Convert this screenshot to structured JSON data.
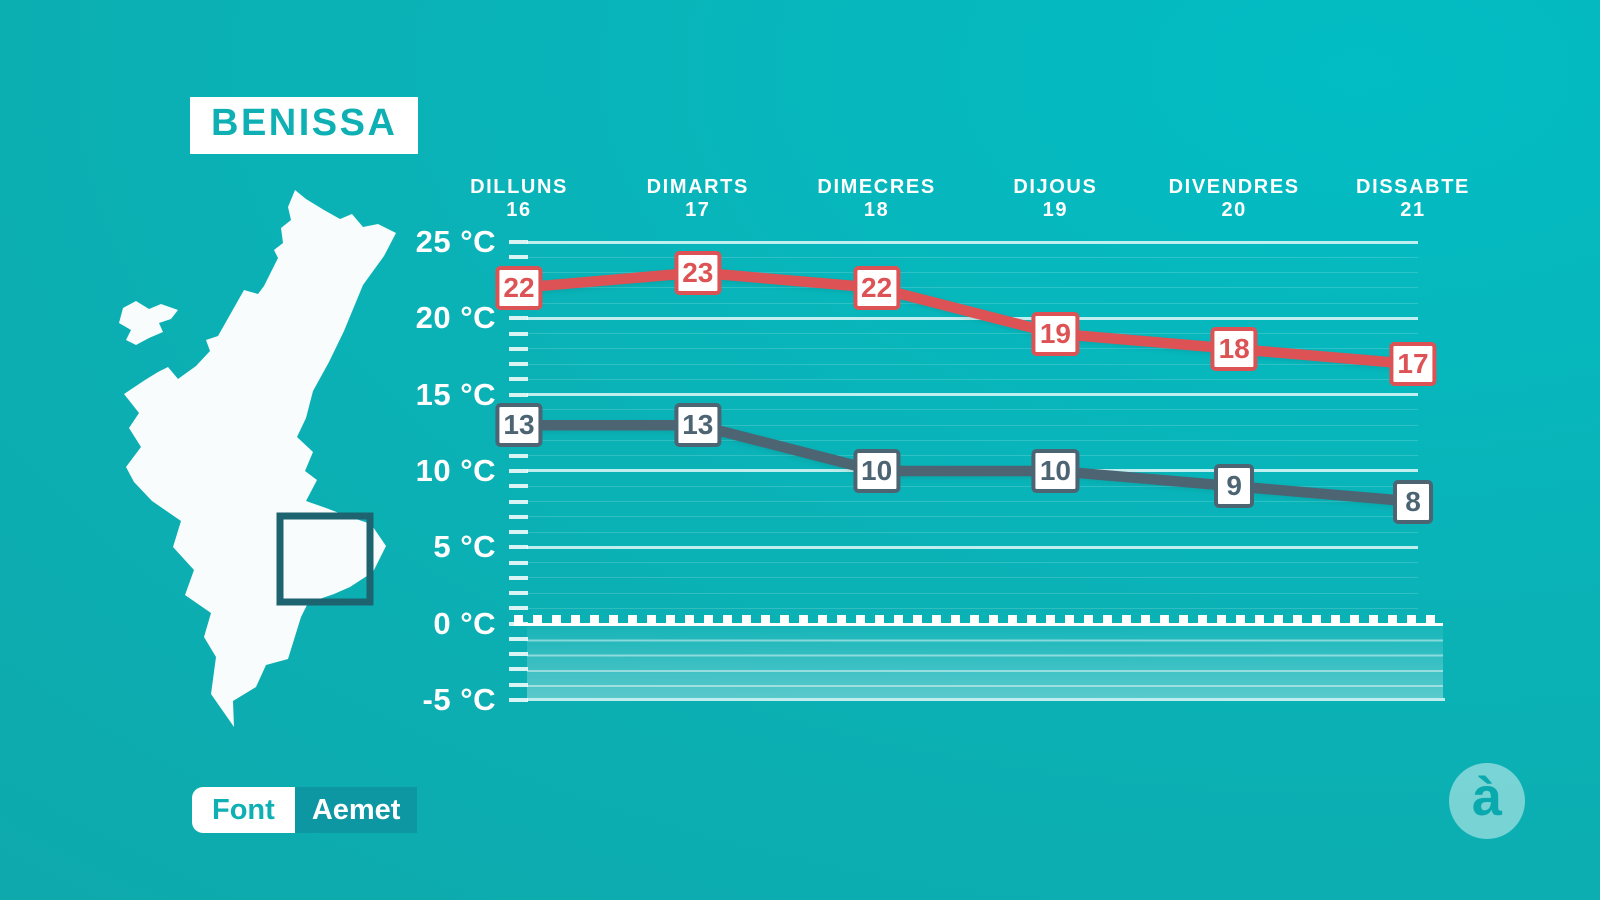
{
  "title": "BENISSA",
  "source": {
    "label": "Font",
    "value": "Aemet"
  },
  "logo": {
    "glyph": "à"
  },
  "colors": {
    "background": "#0ab2b6",
    "accent_teal": "#0fb0b4",
    "max_line": "#dd5254",
    "min_line": "#4d6473",
    "source_value_bg": "#0d97a3",
    "map_fill": "#f8fcfc",
    "map_box_stroke": "#1d6370",
    "gridline": "#ffffff"
  },
  "chart_data": {
    "type": "line",
    "categories": [
      "DILLUNS",
      "DIMARTS",
      "DIMECRES",
      "DIJOUS",
      "DIVENDRES",
      "DISSABTE"
    ],
    "dates": [
      "16",
      "17",
      "18",
      "19",
      "20",
      "21"
    ],
    "series": [
      {
        "name": "max-temperature",
        "color": "#dd5254",
        "values": [
          22,
          23,
          22,
          19,
          18,
          17
        ]
      },
      {
        "name": "min-temperature",
        "color": "#4d6473",
        "values": [
          13,
          13,
          10,
          10,
          9,
          8
        ]
      }
    ],
    "unit": "°C",
    "yticks": [
      "25 °C",
      "20 °C",
      "15 °C",
      "10 °C",
      "5 °C",
      "0 °C",
      "-5 °C"
    ],
    "ytick_values": [
      25,
      20,
      15,
      10,
      5,
      0,
      -5
    ],
    "ylim": [
      -5,
      25
    ],
    "grid": "horizontal, major every 5°C, minor every 1°C",
    "zero_line": "dashed white",
    "legend_position": "none"
  }
}
